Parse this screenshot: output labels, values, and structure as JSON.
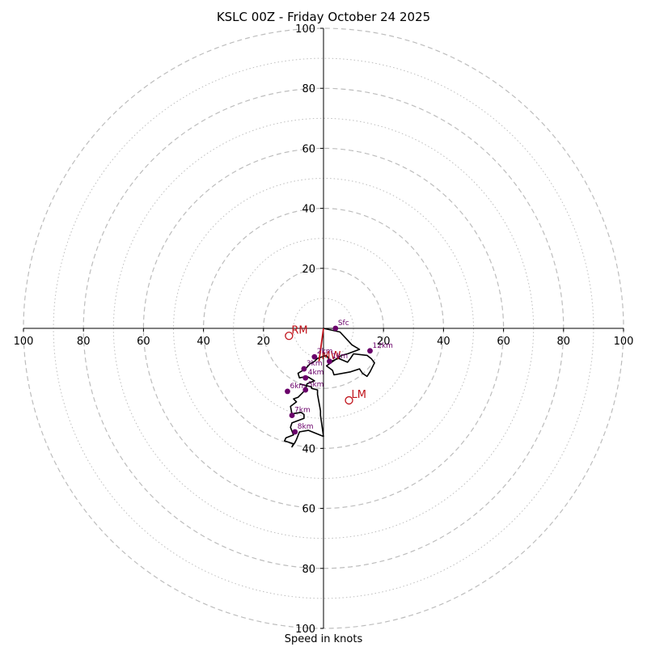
{
  "chart_data": {
    "type": "hodograph",
    "title": "KSLC 00Z - Friday October 24 2025",
    "xlabel": "Speed in knots",
    "units": "knots",
    "range": 100,
    "major_rings": [
      20,
      40,
      60,
      80,
      100
    ],
    "minor_rings": [
      10,
      30,
      50,
      70,
      90
    ],
    "tick_labels": {
      "left": [
        "100",
        "80",
        "60",
        "40",
        "20"
      ],
      "right": [
        "20",
        "40",
        "60",
        "80",
        "100"
      ],
      "top": [
        "100",
        "80",
        "60",
        "40",
        "20"
      ],
      "bottom": [
        "40",
        "60",
        "80",
        "100"
      ]
    },
    "wind_trace": [
      [
        0,
        0
      ],
      [
        5.5,
        -1.2
      ],
      [
        9.5,
        -5.5
      ],
      [
        12,
        -7
      ],
      [
        8,
        -8.5
      ],
      [
        6,
        -9
      ],
      [
        1,
        -12.5
      ],
      [
        3,
        -14
      ],
      [
        3.5,
        -15.5
      ],
      [
        9,
        -14.5
      ],
      [
        12,
        -13.5
      ],
      [
        13,
        -15
      ],
      [
        14.5,
        -16
      ],
      [
        15.5,
        -14.5
      ],
      [
        17,
        -11.5
      ],
      [
        16,
        -10.2
      ],
      [
        14.5,
        -9
      ],
      [
        10,
        -8.5
      ],
      [
        9,
        -10
      ],
      [
        8,
        -11.3
      ],
      [
        5,
        -10
      ],
      [
        2.5,
        -11
      ],
      [
        2,
        -10.5
      ],
      [
        1,
        -9
      ],
      [
        -2,
        -10
      ],
      [
        -3,
        -11
      ],
      [
        -4.5,
        -11.8
      ],
      [
        -6,
        -13.5
      ],
      [
        -8.5,
        -15
      ],
      [
        -8,
        -16.5
      ],
      [
        -5.5,
        -16
      ],
      [
        -3,
        -17.5
      ],
      [
        -5.5,
        -18.5
      ],
      [
        -6,
        -20.5
      ],
      [
        -8.5,
        -23
      ],
      [
        -10,
        -23.5
      ],
      [
        -9,
        -24.5
      ],
      [
        -11,
        -26
      ],
      [
        -10.5,
        -28.5
      ],
      [
        -7.5,
        -28
      ],
      [
        -6.5,
        -28.7
      ],
      [
        -6.5,
        -30
      ],
      [
        -10.5,
        -31.5
      ],
      [
        -11,
        -33
      ],
      [
        -10,
        -35.5
      ],
      [
        -12.5,
        -36.5
      ],
      [
        -13,
        -37.5
      ],
      [
        -10,
        -38.5
      ],
      [
        -10.5,
        -39.5
      ],
      [
        -9.5,
        -38
      ],
      [
        -9,
        -37
      ],
      [
        -8,
        -34.5
      ],
      [
        -5,
        -34
      ],
      [
        0,
        -36
      ],
      [
        -1,
        -29
      ],
      [
        -1,
        -27.5
      ],
      [
        -2,
        -22
      ],
      [
        -2,
        -20.5
      ],
      [
        -4,
        -20
      ],
      [
        -4,
        -19.5
      ],
      [
        -6,
        -19
      ],
      [
        -8,
        -18.5
      ]
    ],
    "height_markers": [
      {
        "label": "Sfc",
        "u": 4,
        "v": 0
      },
      {
        "label": "1km",
        "u": 2,
        "v": -11
      },
      {
        "label": "2km",
        "u": -3,
        "v": -9.5
      },
      {
        "label": "3km",
        "u": -6.5,
        "v": -13.5
      },
      {
        "label": "4km",
        "u": -6,
        "v": -16.5
      },
      {
        "label": "5km",
        "u": -6,
        "v": -20.5
      },
      {
        "label": "6km",
        "u": -12,
        "v": -21
      },
      {
        "label": "7km",
        "u": -10.5,
        "v": -29
      },
      {
        "label": "8km",
        "u": -9.5,
        "v": -34.5
      },
      {
        "label": "12km",
        "u": 15.5,
        "v": -7.5
      }
    ],
    "storm_motions": [
      {
        "label": "RM",
        "u": -11.5,
        "v": -2.5
      },
      {
        "label": "LM",
        "u": 8.5,
        "v": -24
      },
      {
        "label": "MW",
        "u": -1.5,
        "v": -11
      }
    ],
    "shear_vector": {
      "from": [
        0,
        0
      ],
      "to": [
        -1.5,
        -11
      ]
    },
    "colors": {
      "trace": "#000000",
      "markers": "#6a006a",
      "storm_motion": "#c0121a",
      "grid": "#bdbdbd",
      "axes": "#000000"
    }
  }
}
